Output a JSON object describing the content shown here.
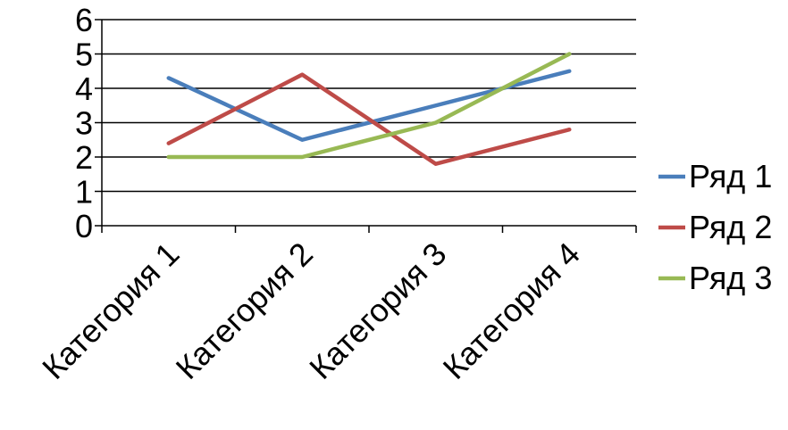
{
  "chart_data": {
    "type": "line",
    "categories": [
      "Категория 1",
      "Категория 2",
      "Категория 3",
      "Категория 4"
    ],
    "y_ticks": [
      "0",
      "1",
      "2",
      "3",
      "4",
      "5",
      "6"
    ],
    "ylim": [
      0,
      6
    ],
    "grid": "horizontal",
    "legend_position": "right",
    "series": [
      {
        "name": "Ряд 1",
        "color": "#4a7ebb",
        "values": [
          4.3,
          2.5,
          3.5,
          4.5
        ]
      },
      {
        "name": "Ряд 2",
        "color": "#be4b48",
        "values": [
          2.4,
          4.4,
          1.8,
          2.8
        ]
      },
      {
        "name": "Ряд 3",
        "color": "#98b954",
        "values": [
          2.0,
          2.0,
          3.0,
          5.0
        ]
      }
    ]
  }
}
